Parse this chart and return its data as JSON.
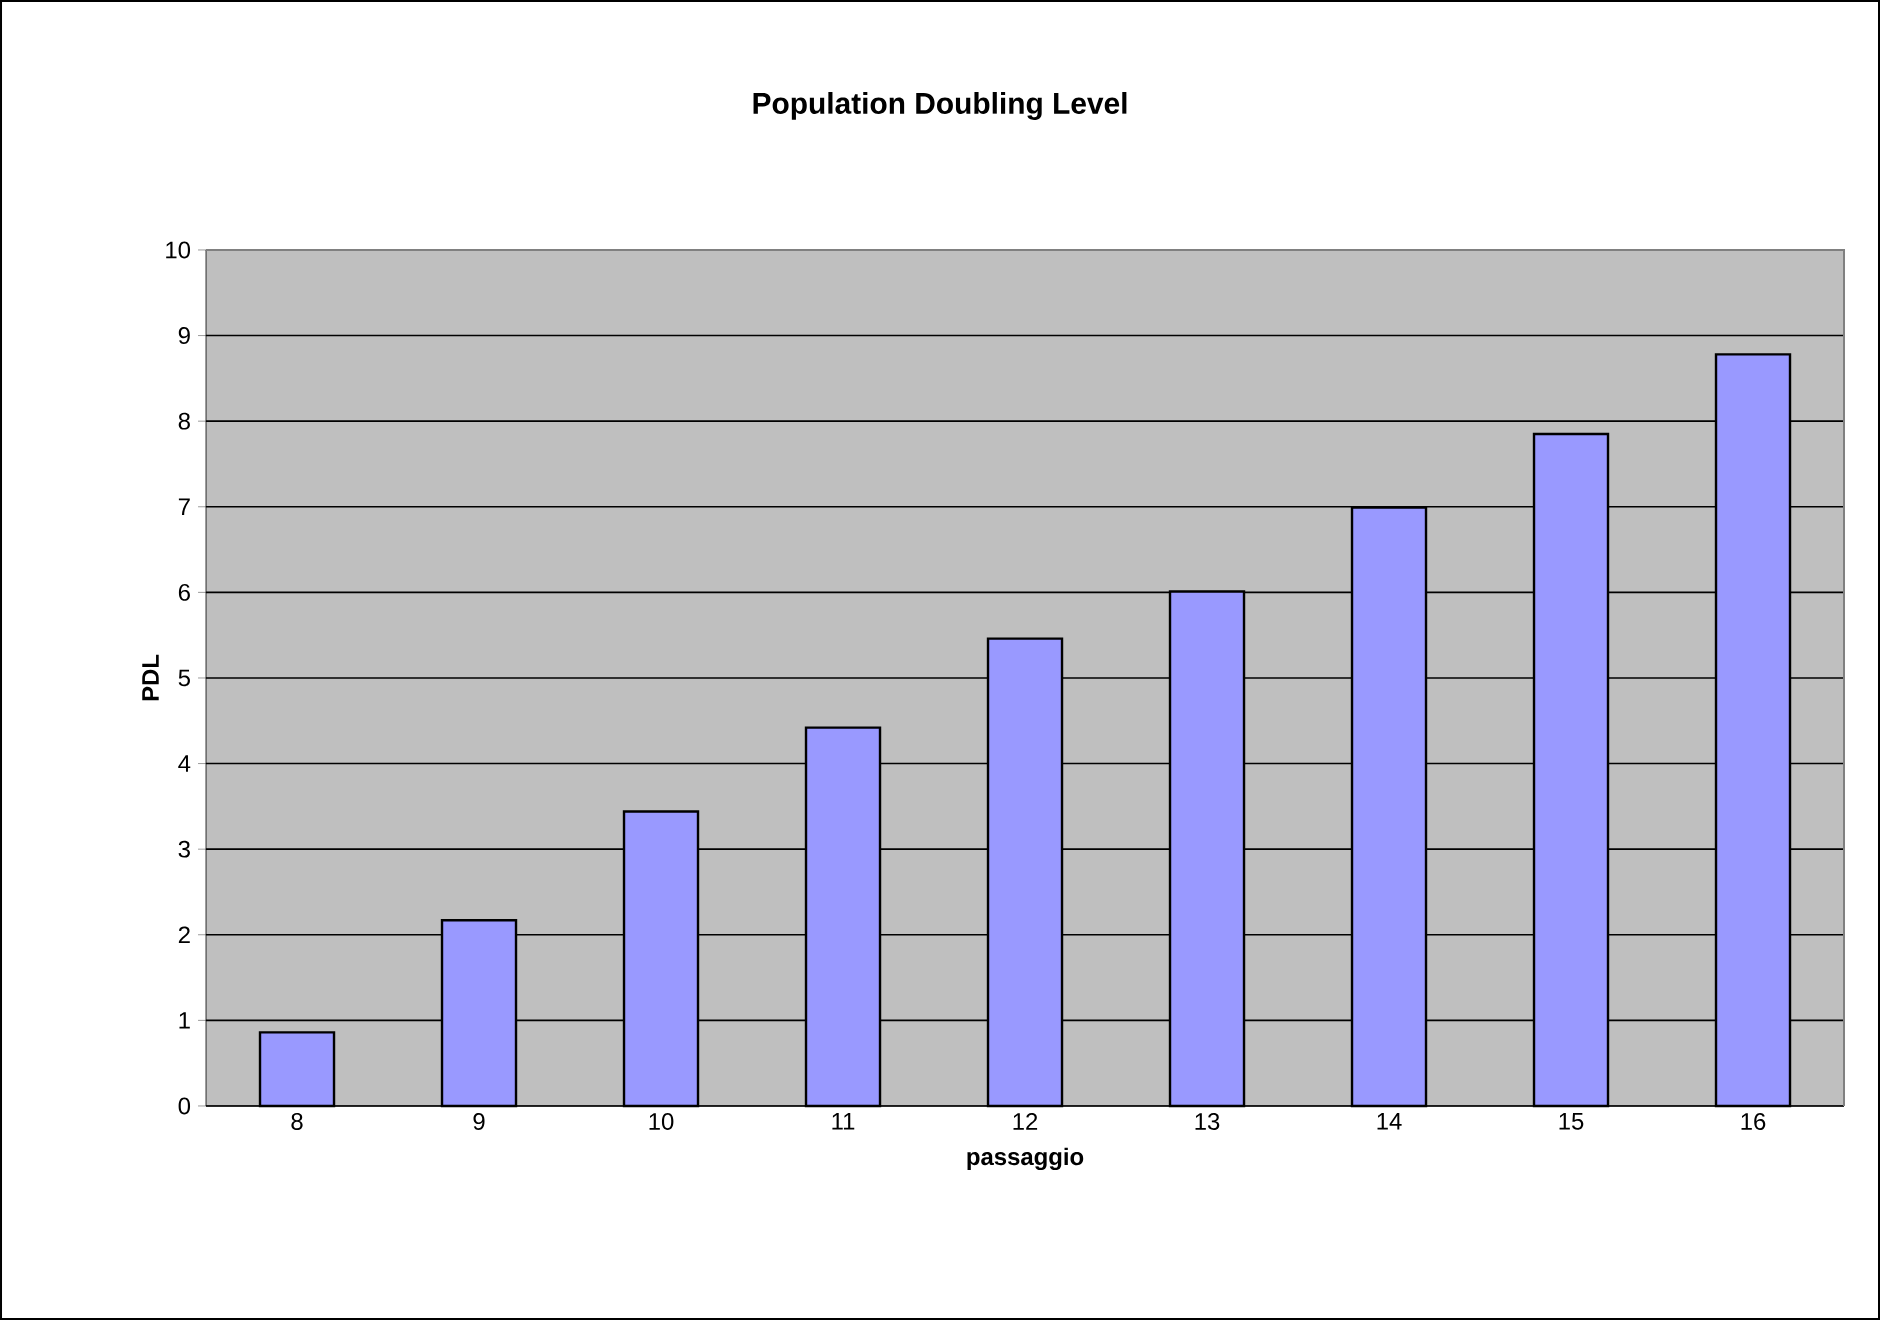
{
  "chart_data": {
    "type": "bar",
    "title": "Population Doubling Level",
    "xlabel": "passaggio",
    "ylabel": "PDL",
    "categories": [
      "8",
      "9",
      "10",
      "11",
      "12",
      "13",
      "14",
      "15",
      "16"
    ],
    "values": [
      0.86,
      2.17,
      3.44,
      4.42,
      5.46,
      6.01,
      6.99,
      7.85,
      8.78
    ],
    "color": "#9999ff",
    "ylim": [
      0,
      10
    ],
    "yticks": [
      0,
      1,
      2,
      3,
      4,
      5,
      6,
      7,
      8,
      9,
      10
    ],
    "grid": "y"
  }
}
